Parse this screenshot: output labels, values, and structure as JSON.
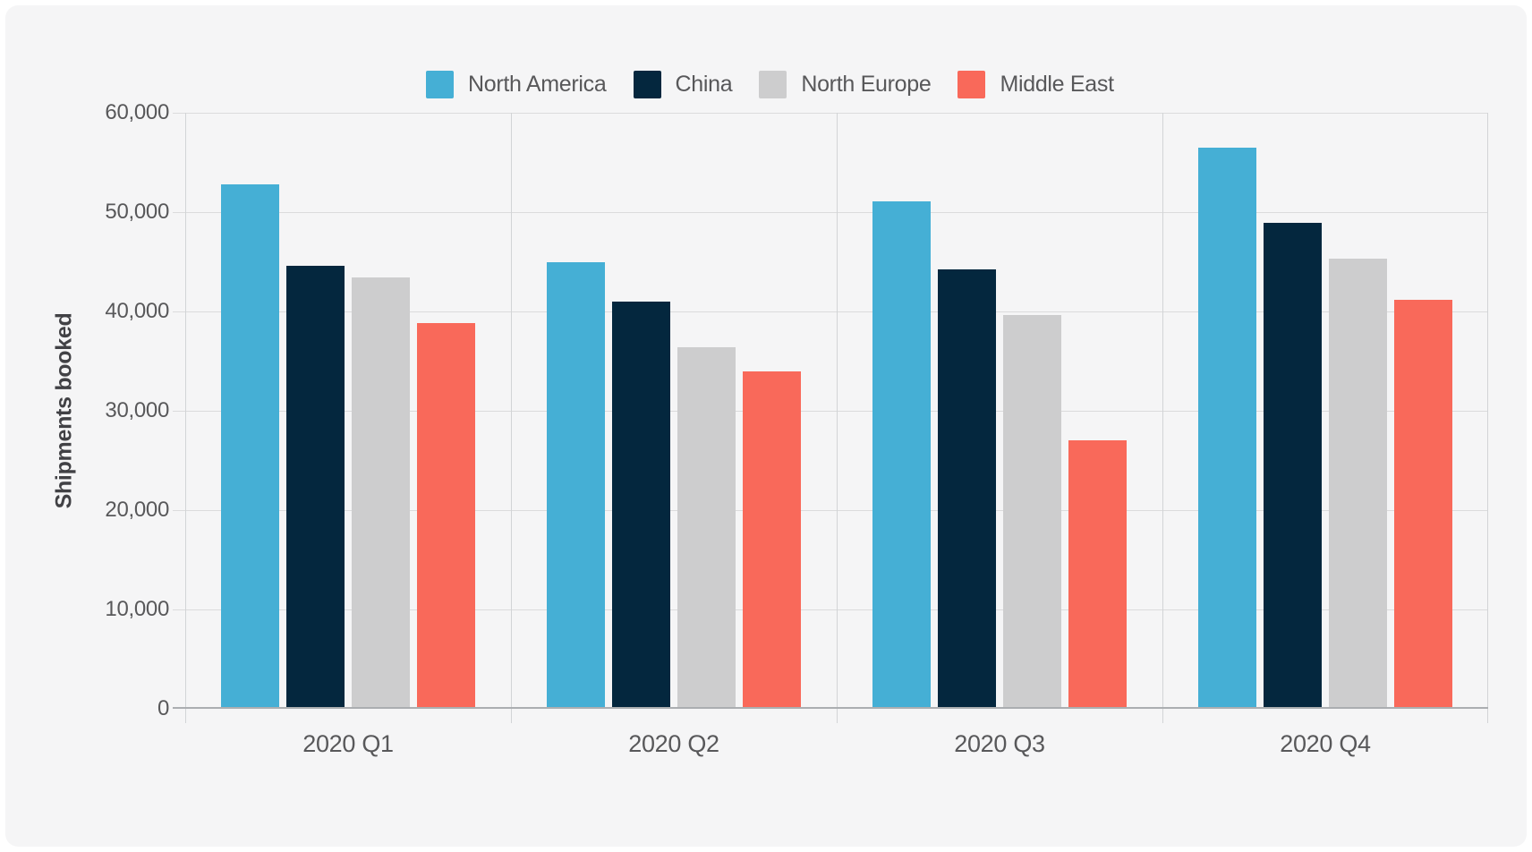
{
  "page": {
    "outer_background": "#ffffff",
    "card_background": "#f5f5f6",
    "gridline_color": "#dbdbdc",
    "separator_color": "#d2d4d6",
    "baseline_color": "#abaeb1",
    "label_color": "#58585a",
    "axis_title_color": "#414145"
  },
  "chart_data": {
    "type": "bar",
    "title": "",
    "xlabel": "",
    "ylabel": "Shipments booked",
    "ylim": [
      0,
      60000
    ],
    "ytick_step": 10000,
    "ytick_labels": [
      "0",
      "10,000",
      "20,000",
      "30,000",
      "40,000",
      "50,000",
      "60,000"
    ],
    "grid": true,
    "legend_position": "top",
    "categories": [
      "2020 Q1",
      "2020 Q2",
      "2020 Q3",
      "2020 Q4"
    ],
    "series": [
      {
        "name": "North America",
        "color": "#45afd5",
        "values": [
          52800,
          45000,
          51100,
          56500
        ]
      },
      {
        "name": "China",
        "color": "#04273e",
        "values": [
          44600,
          41000,
          44200,
          48900
        ]
      },
      {
        "name": "North Europe",
        "color": "#cdcdce",
        "values": [
          43400,
          36400,
          39600,
          45300
        ]
      },
      {
        "name": "Middle East",
        "color": "#f9695a",
        "values": [
          38800,
          34000,
          27000,
          41200
        ]
      }
    ]
  }
}
